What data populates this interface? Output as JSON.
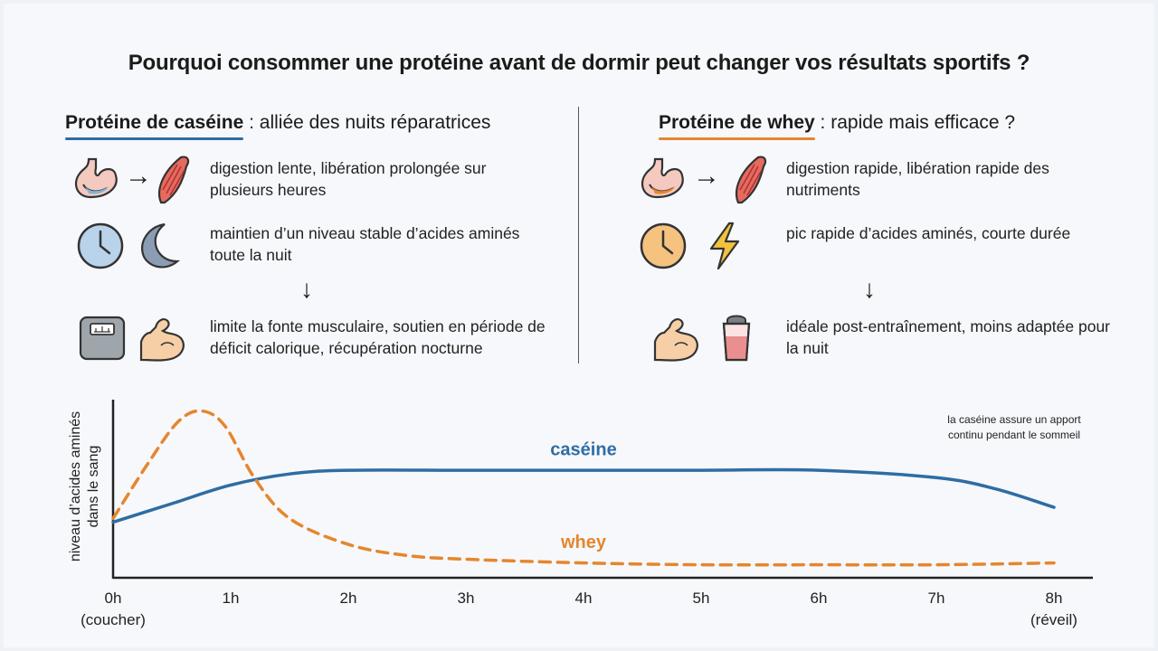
{
  "title": "Pourquoi consommer une protéine avant de dormir peut changer vos résultats sportifs ?",
  "left": {
    "heading_bold": "Protéine de caséine",
    "heading_rest": " : alliée des nuits réparatrices",
    "rows": [
      "digestion lente, libération prolongée sur plusieurs heures",
      "maintien d’un niveau stable d’acides aminés toute la nuit",
      "limite la fonte musculaire, soutien en période de déficit calorique, récupération nocturne"
    ],
    "icons": [
      "stomach-icon",
      "right-arrow-icon",
      "muscle-icon",
      "clock-icon",
      "moon-icon",
      "down-arrow-icon",
      "scale-icon",
      "flexed-arm-icon"
    ]
  },
  "right": {
    "heading_bold": "Protéine de whey",
    "heading_rest": " : rapide mais efficace ?",
    "rows": [
      "digestion rapide, libération rapide des nutriments",
      "pic rapide d’acides aminés, courte durée",
      "idéale post-entraînement, moins adaptée pour la nuit"
    ],
    "icons": [
      "stomach-icon",
      "right-arrow-icon",
      "muscle-icon",
      "clock-icon",
      "lightning-icon",
      "down-arrow-icon",
      "flexed-arm-icon",
      "shaker-icon"
    ]
  },
  "colors": {
    "casein": "#2e6da4",
    "whey": "#e5862e"
  },
  "chart_data": {
    "type": "line",
    "ylabel": "niveau d’acides aminés dans le sang",
    "x_ticks": [
      "0h",
      "1h",
      "2h",
      "3h",
      "4h",
      "5h",
      "6h",
      "7h",
      "8h"
    ],
    "x_subticks": {
      "0": "(coucher)",
      "8": "(réveil)"
    },
    "annotation": "la caséine assure un apport continu pendant le sommeil",
    "series": [
      {
        "name": "caséine",
        "x": [
          0,
          0.5,
          1,
          1.5,
          2,
          3,
          4,
          5,
          6,
          7,
          7.5,
          8
        ],
        "y": [
          30,
          40,
          50,
          56,
          58,
          58,
          58,
          58,
          58,
          54,
          48,
          38
        ]
      },
      {
        "name": "whey",
        "x": [
          0,
          0.3,
          0.55,
          0.75,
          0.95,
          1.2,
          1.5,
          2,
          2.5,
          3,
          4,
          5,
          6,
          7,
          8
        ],
        "y": [
          32,
          62,
          84,
          90,
          82,
          54,
          32,
          18,
          12,
          10,
          8,
          7,
          7,
          7,
          8
        ]
      }
    ],
    "ylim": [
      0,
      100
    ],
    "xlim": [
      0,
      8
    ]
  }
}
